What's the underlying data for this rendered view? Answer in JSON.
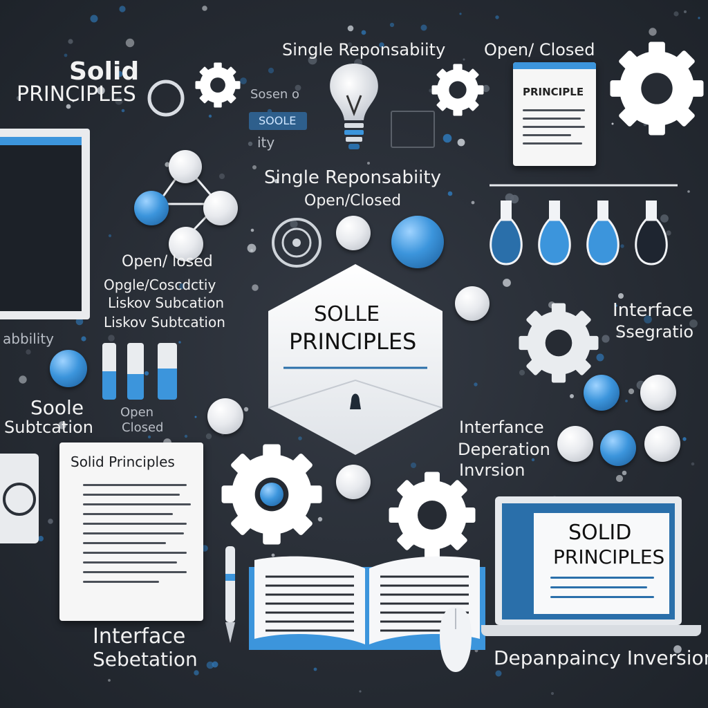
{
  "labels": {
    "solid_top": "Solid",
    "principles_top": "PRINCIPLES",
    "single_responsibility_top": "Single Reponsabiity",
    "open_closed_top": "Open/ Closed",
    "principle_card": "PRINCIPLE",
    "soseno": "Sosen o",
    "soole_badge": "SOOLE",
    "ity": "ity",
    "single_responsibility_mid": "Single Reponsabiity",
    "open_closed_mid": "Open/Closed",
    "open_closed_left": "Open/ losed",
    "opgle": "Opgle/Coscdctiy",
    "liskov_1": "Liskov Subcation",
    "liskov_2": "Liskov Subtcation",
    "abbility": "abbility",
    "center_title_1": "SOLLE",
    "center_title_2": "PRINCIPLES",
    "interface_right": "Interface",
    "ssegatio": "Ssegratio",
    "soole_left": "Soole",
    "open_small": "Open",
    "subtcation": "Subtcation",
    "closed_small": "Closed",
    "interface_mid": "Interfance",
    "deperation": "Deperation",
    "invrsion": "Invrsion",
    "card_solid": "Solid Principles",
    "laptop_solid": "SOLID",
    "laptop_principles": "PRINCIPLES",
    "interface_bottom": "Interface",
    "sebetation": "Sebetation",
    "dependency_bottom": "Depanpaincy Inversion"
  },
  "colors": {
    "background": "#262b33",
    "accent_blue": "#3c95dc",
    "text_light": "#f2f2f2",
    "card": "#f6f6f6"
  },
  "icons": [
    "gear-icon",
    "lightbulb-icon",
    "document-icon",
    "molecule-icon",
    "flask-icon",
    "book-icon",
    "laptop-icon",
    "mouse-icon",
    "pen-icon",
    "monitor-icon"
  ]
}
